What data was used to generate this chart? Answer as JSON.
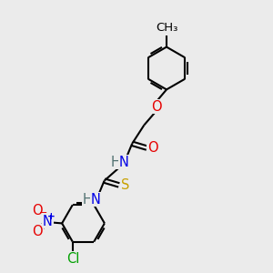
{
  "bg_color": "#ebebeb",
  "line_color": "#000000",
  "bond_lw": 1.5,
  "atom_colors": {
    "O": "#e60000",
    "N": "#0000e6",
    "S": "#c8a000",
    "Cl": "#00a000",
    "H": "#507070",
    "C": "#000000"
  },
  "font_size": 10.5,
  "font_size_methyl": 9.5
}
